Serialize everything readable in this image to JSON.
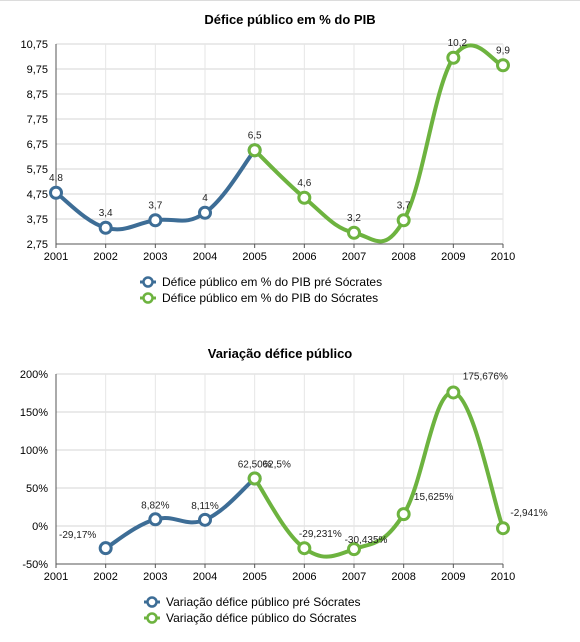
{
  "chart_data": [
    {
      "type": "line",
      "title": "Défice público em % do PIB",
      "x": [
        "2001",
        "2002",
        "2003",
        "2004",
        "2005",
        "2006",
        "2007",
        "2008",
        "2009",
        "2010"
      ],
      "ylim": [
        2.75,
        10.75
      ],
      "yticks": [
        "2,75",
        "3,75",
        "4,75",
        "5,75",
        "6,75",
        "7,75",
        "8,75",
        "9,75",
        "10,75"
      ],
      "ytick_values": [
        2.75,
        3.75,
        4.75,
        5.75,
        6.75,
        7.75,
        8.75,
        9.75,
        10.75
      ],
      "grid": true,
      "legend_position": "bottom",
      "series": [
        {
          "name": "Défice público em % do PIB pré Sócrates",
          "color": "#3d6d96",
          "x": [
            "2001",
            "2002",
            "2003",
            "2004",
            "2005"
          ],
          "values": [
            4.8,
            3.4,
            3.7,
            4.0,
            6.5
          ],
          "labels": [
            "4,8",
            "3,4",
            "3,7",
            "4",
            "6,5"
          ]
        },
        {
          "name": "Défice público em % do PIB do Sócrates",
          "color": "#6db33f",
          "x": [
            "2005",
            "2006",
            "2007",
            "2008",
            "2009",
            "2010"
          ],
          "values": [
            6.5,
            4.6,
            3.2,
            3.7,
            10.2,
            9.9
          ],
          "labels": [
            "",
            "4,6",
            "3,2",
            "3,7",
            "10,2",
            "9,9"
          ]
        }
      ]
    },
    {
      "type": "line",
      "title": "Variação défice público",
      "x": [
        "2001",
        "2002",
        "2003",
        "2004",
        "2005",
        "2006",
        "2007",
        "2008",
        "2009",
        "2010"
      ],
      "ylim": [
        -50,
        200
      ],
      "yticks": [
        "-50%",
        "0%",
        "50%",
        "100%",
        "150%",
        "200%"
      ],
      "ytick_values": [
        -50,
        0,
        50,
        100,
        150,
        200
      ],
      "grid": true,
      "legend_position": "bottom",
      "series": [
        {
          "name": "Variação défice público pré Sócrates",
          "color": "#3d6d96",
          "x": [
            "2002",
            "2003",
            "2004",
            "2005"
          ],
          "values": [
            -29.17,
            8.82,
            8.11,
            62.5
          ],
          "labels": [
            "-29,17%",
            "8,82%",
            "8,11%",
            "62,50%"
          ]
        },
        {
          "name": "Variação défice público do Sócrates",
          "color": "#6db33f",
          "x": [
            "2005",
            "2006",
            "2007",
            "2008",
            "2009",
            "2010"
          ],
          "values": [
            62.5,
            -29.231,
            -30.435,
            15.625,
            175.676,
            -2.941
          ],
          "labels": [
            "62,5%",
            "-29,231%",
            "-30,435%",
            "15,625%",
            "175,676%",
            "-2,941%"
          ]
        }
      ]
    }
  ]
}
